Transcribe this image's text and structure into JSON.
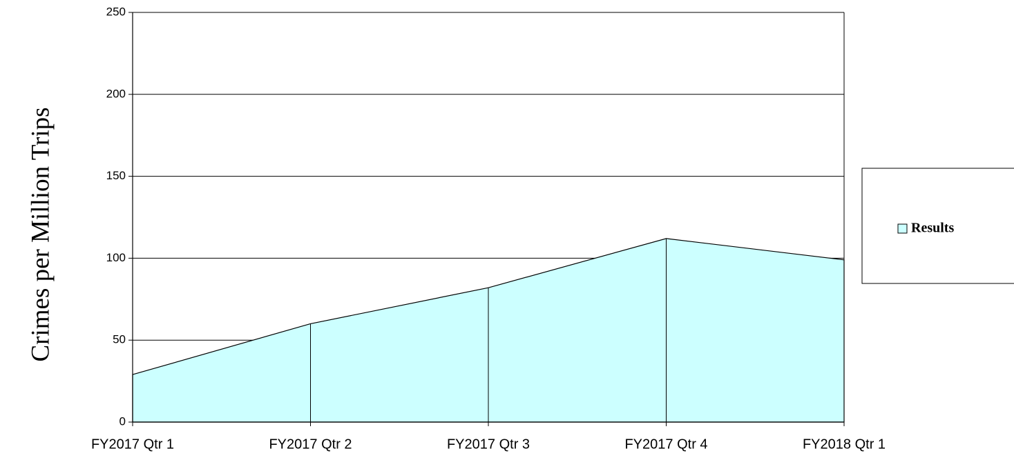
{
  "chart_data": {
    "type": "area",
    "y_label": "Crimes per Million Trips",
    "categories": [
      "FY2017 Qtr 1",
      "FY2017 Qtr 2",
      "FY2017 Qtr 3",
      "FY2017 Qtr 4",
      "FY2018 Qtr 1"
    ],
    "series": [
      {
        "name": "Results",
        "color": "#ccffff",
        "values": [
          29,
          60,
          82,
          112,
          99
        ]
      }
    ],
    "ylim": [
      0,
      250
    ],
    "yticks": [
      0,
      50,
      100,
      150,
      200,
      250
    ],
    "grid": true,
    "legend": "right"
  }
}
